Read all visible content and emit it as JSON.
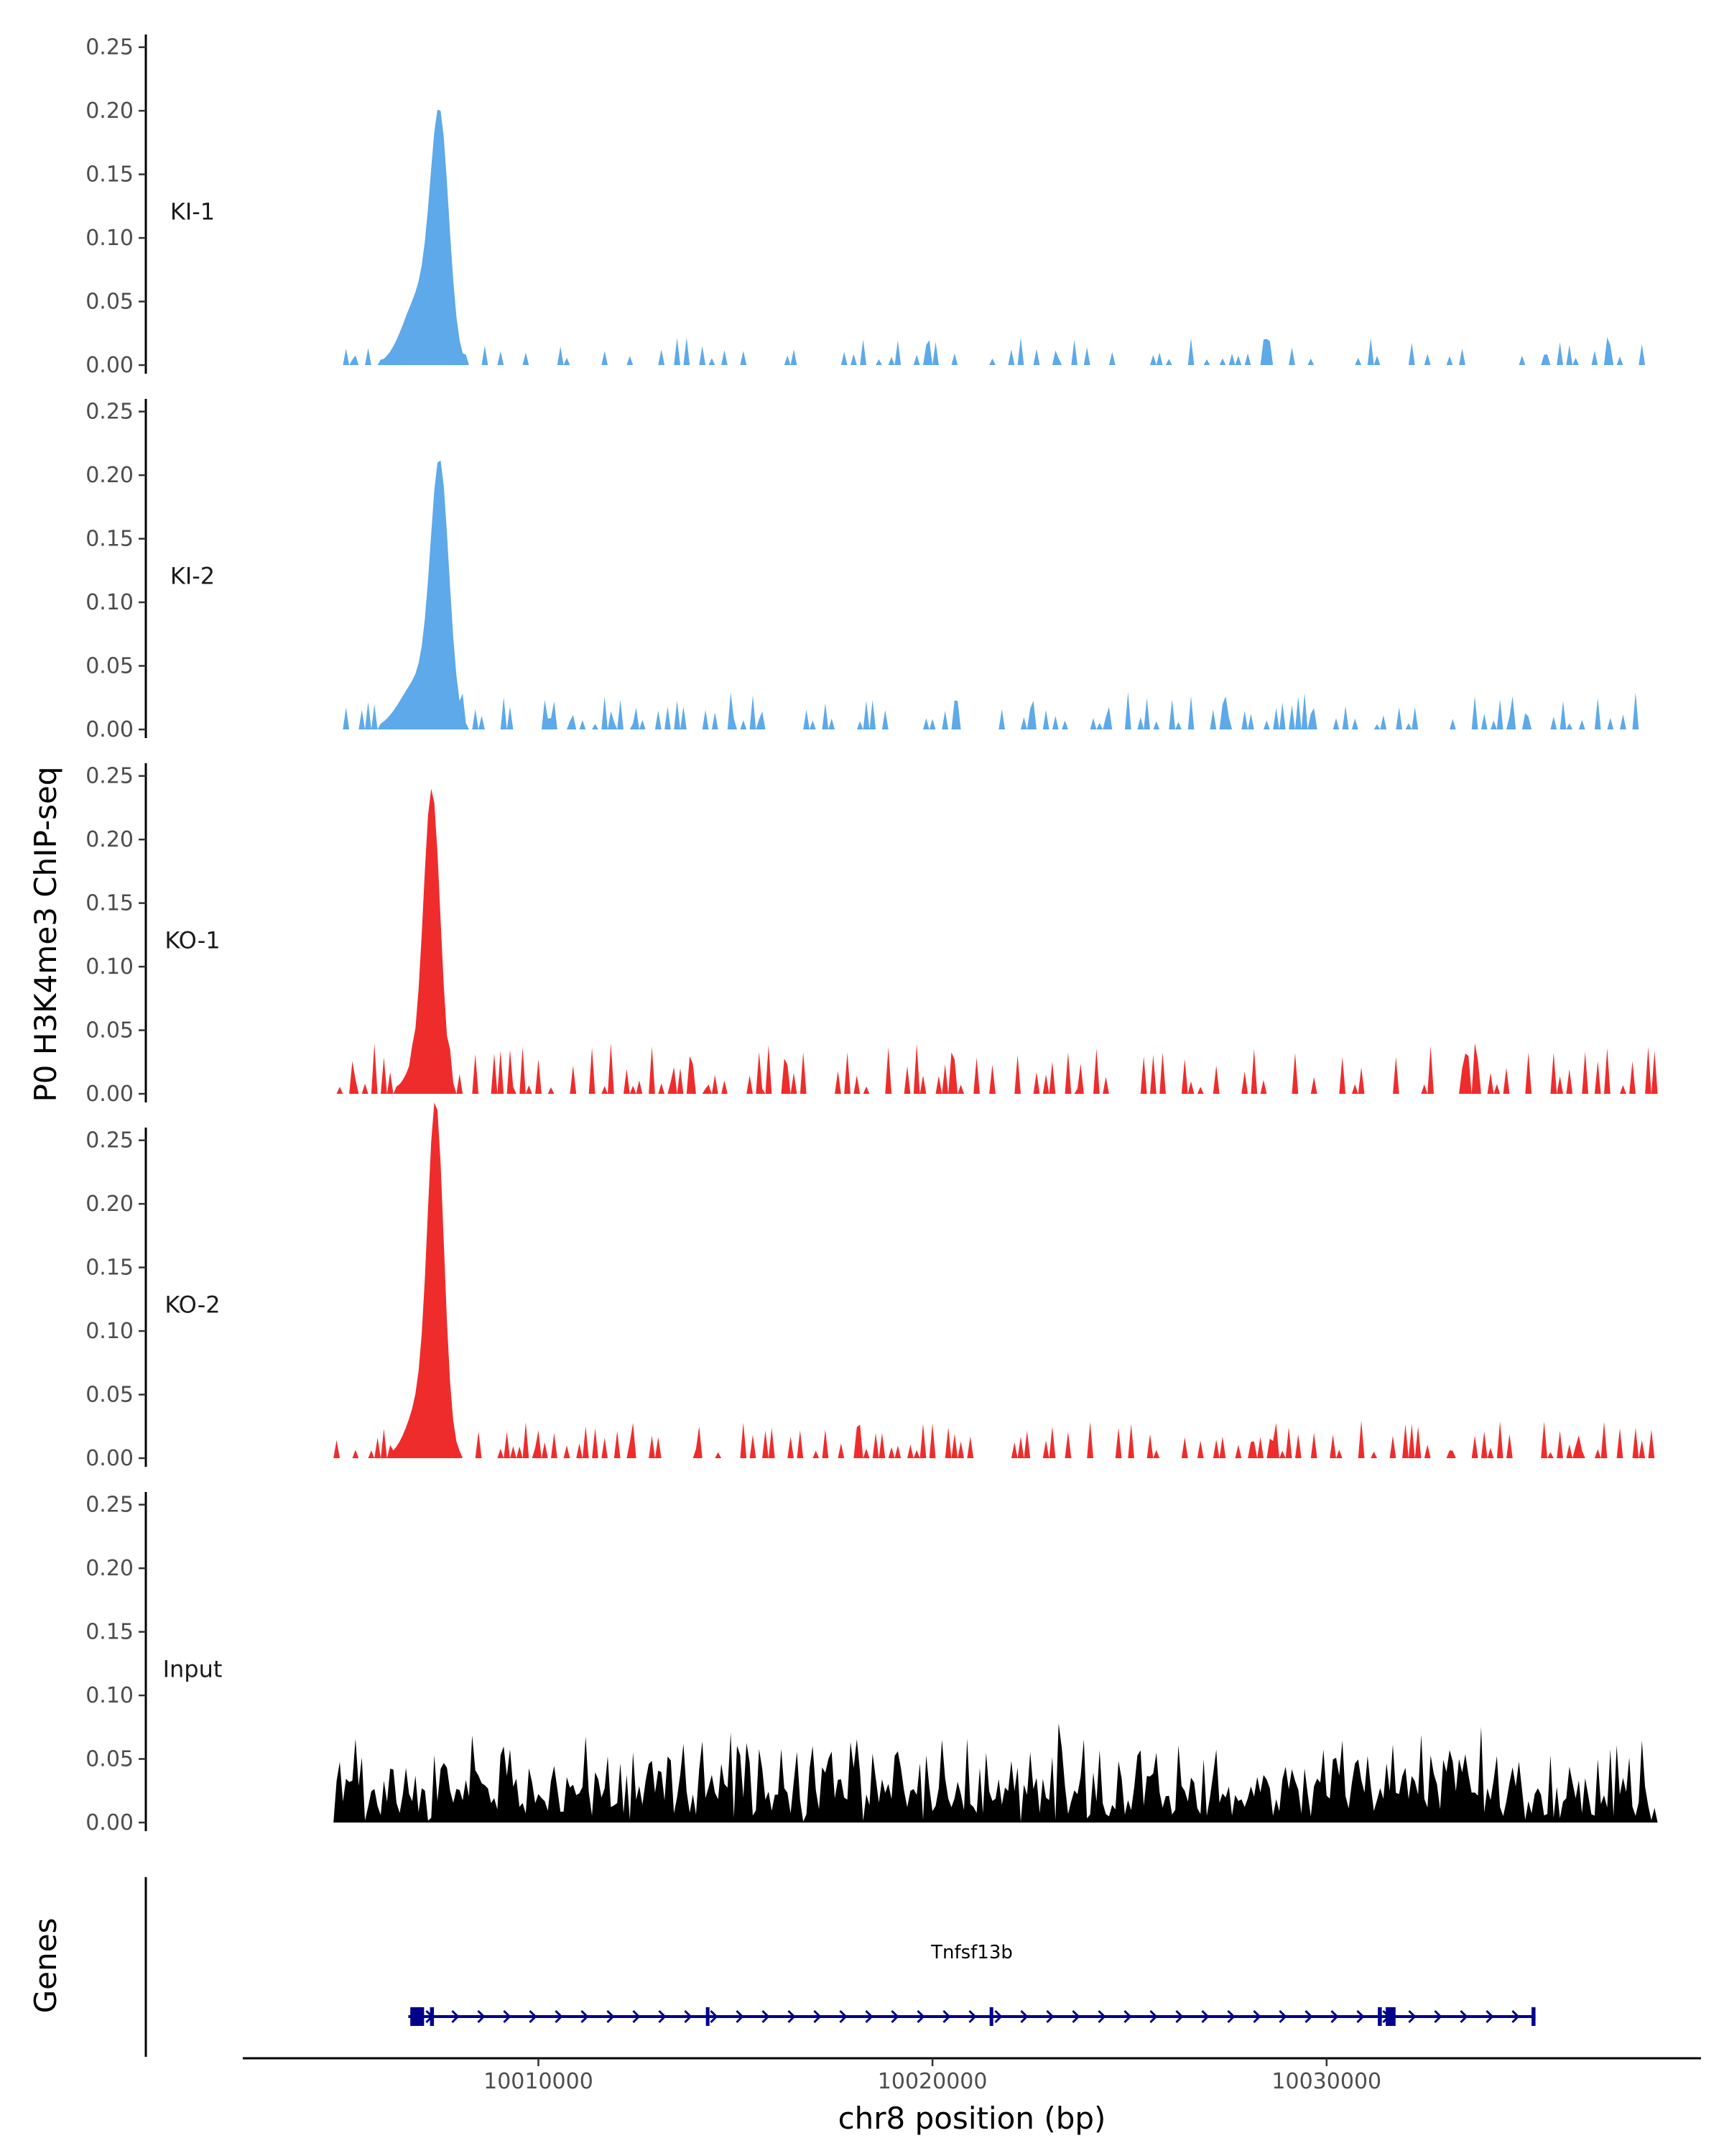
{
  "chart_data": {
    "type": "area",
    "title": "",
    "ylabel": "P0 H3K4me3 ChIP-seq",
    "xlabel": "chr8 position (bp)",
    "genes_label": "Genes",
    "xlim": [
      10002500,
      10039500
    ],
    "ylim": [
      0,
      0.26
    ],
    "x_ticks": [
      10010000,
      10020000,
      10030000
    ],
    "x_tick_labels": [
      "10010000",
      "10020000",
      "10030000"
    ],
    "y_ticks": [
      0,
      0.05,
      0.1,
      0.15,
      0.2,
      0.25
    ],
    "y_tick_labels": [
      "0.00",
      "0.05",
      "0.10",
      "0.15",
      "0.20",
      "0.25"
    ],
    "signal_range": [
      10004800,
      10038400
    ],
    "tracks": [
      {
        "name": "KI-1",
        "color": "#5DA9E9",
        "peak": {
          "pos": 10007500,
          "height": 0.175,
          "sigma": 230
        },
        "shoulder": {
          "pos": 10007000,
          "height": 0.055,
          "sigma": 420
        },
        "noise_density": 0.38,
        "noise_max": 0.022,
        "seed": 11
      },
      {
        "name": "KI-2",
        "color": "#5DA9E9",
        "peak": {
          "pos": 10007500,
          "height": 0.19,
          "sigma": 230
        },
        "shoulder": {
          "pos": 10007000,
          "height": 0.04,
          "sigma": 480
        },
        "noise_density": 0.5,
        "noise_max": 0.03,
        "seed": 23
      },
      {
        "name": "KO-1",
        "color": "#EE2C2C",
        "peak": {
          "pos": 10007300,
          "height": 0.232,
          "sigma": 210
        },
        "shoulder": {
          "pos": 10006900,
          "height": 0.02,
          "sigma": 300
        },
        "noise_density": 0.42,
        "noise_max": 0.04,
        "seed": 37
      },
      {
        "name": "KO-2",
        "color": "#EE2C2C",
        "peak": {
          "pos": 10007400,
          "height": 0.245,
          "sigma": 200
        },
        "shoulder": {
          "pos": 10007100,
          "height": 0.05,
          "sigma": 380
        },
        "noise_density": 0.45,
        "noise_max": 0.03,
        "seed": 53
      },
      {
        "name": "Input",
        "color": "#000000",
        "background": {
          "base": 0.025,
          "amplitude": 0.055,
          "max": 0.098
        },
        "seed": 71
      }
    ],
    "gene": {
      "name": "Tnfsf13b",
      "color": "#00008B",
      "start": 10006700,
      "end": 10035300,
      "strand": "+",
      "exons": [
        [
          10006750,
          10007100
        ],
        [
          10007250,
          10007350
        ],
        [
          10014250,
          10014320
        ],
        [
          10021450,
          10021530
        ],
        [
          10031300,
          10031400
        ],
        [
          10031500,
          10031750
        ],
        [
          10035200,
          10035300
        ]
      ]
    }
  }
}
